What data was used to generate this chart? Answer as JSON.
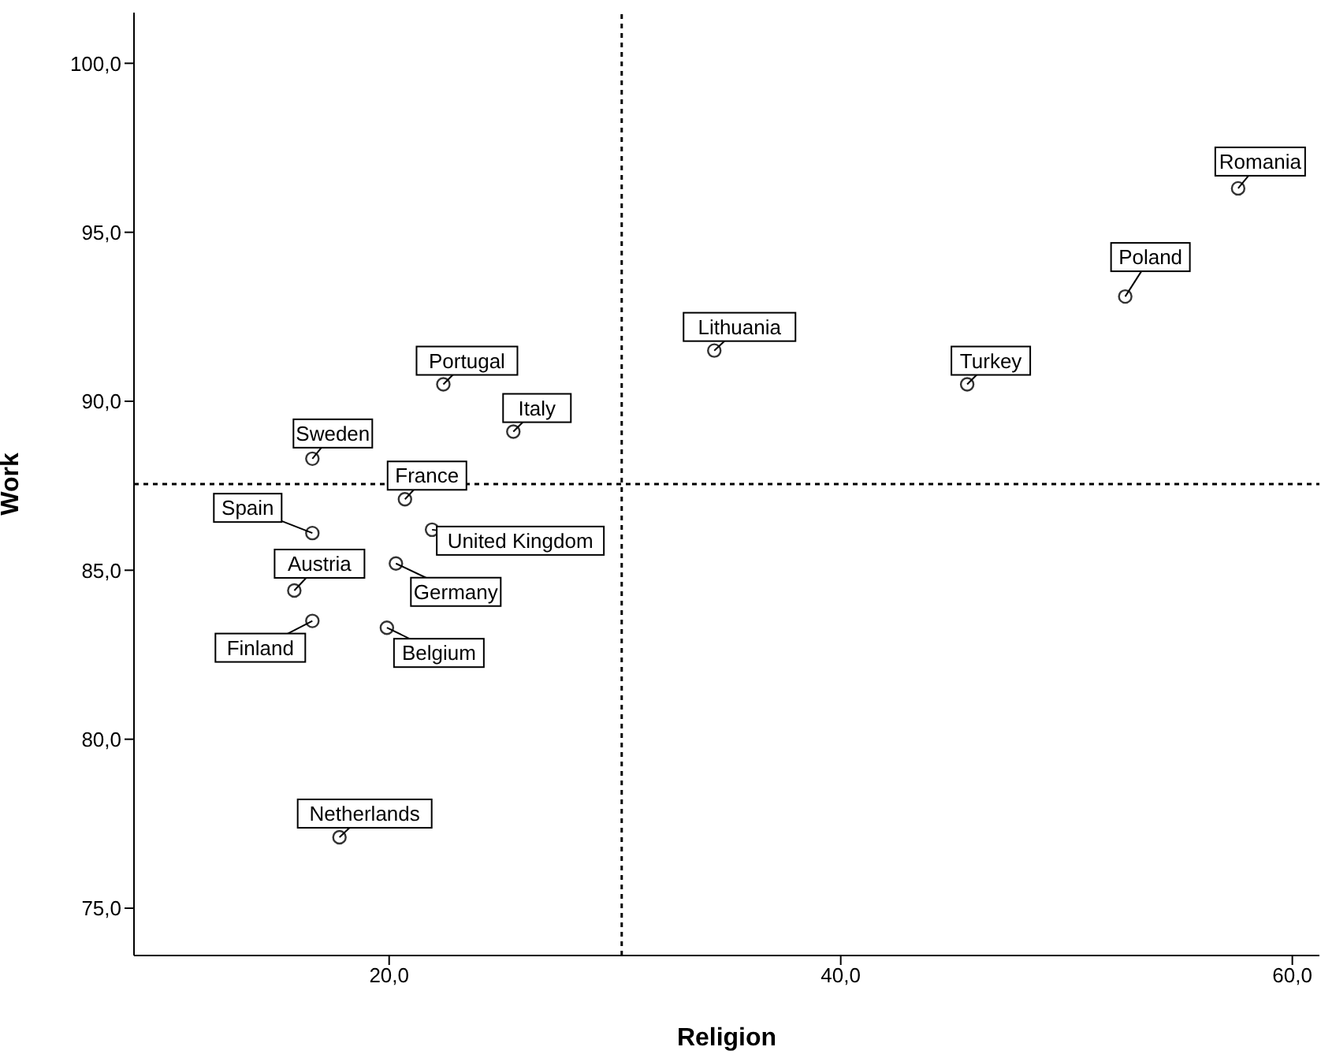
{
  "chart_data": {
    "type": "scatter",
    "xlabel": "Religion",
    "ylabel": "Work",
    "x": [
      57.6,
      52.6,
      45.6,
      34.4,
      22.4,
      25.5,
      16.6,
      20.7,
      16.6,
      21.9,
      20.3,
      15.8,
      16.6,
      19.9,
      17.8
    ],
    "values": [
      96.3,
      93.1,
      90.5,
      91.5,
      90.5,
      89.1,
      88.3,
      87.1,
      86.1,
      86.2,
      85.2,
      84.4,
      83.5,
      83.3,
      77.1
    ],
    "color": "#333333",
    "marker": "circle",
    "annotations": [
      {
        "text": "Romania",
        "x": 57.6,
        "y": 96.3
      },
      {
        "text": "Poland",
        "x": 52.6,
        "y": 93.1
      },
      {
        "text": "Turkey",
        "x": 45.6,
        "y": 90.5
      },
      {
        "text": "Lithuania",
        "x": 34.4,
        "y": 91.5
      },
      {
        "text": "Portugal",
        "x": 22.4,
        "y": 90.5
      },
      {
        "text": "Italy",
        "x": 25.5,
        "y": 89.1
      },
      {
        "text": "Sweden",
        "x": 16.6,
        "y": 88.3
      },
      {
        "text": "France",
        "x": 20.7,
        "y": 87.1
      },
      {
        "text": "Spain",
        "x": 16.6,
        "y": 86.1
      },
      {
        "text": "United Kingdom",
        "x": 21.9,
        "y": 86.2
      },
      {
        "text": "Germany",
        "x": 20.3,
        "y": 85.2
      },
      {
        "text": "Austria",
        "x": 15.8,
        "y": 84.4
      },
      {
        "text": "Finland",
        "x": 16.6,
        "y": 83.5
      },
      {
        "text": "Belgium",
        "x": 19.9,
        "y": 83.3
      },
      {
        "text": "Netherlands",
        "x": 17.8,
        "y": 77.1
      }
    ],
    "xlim": [
      8.7,
      61.2
    ],
    "xticks": [
      {
        "value": 20,
        "label": "20,0"
      },
      {
        "value": 40,
        "label": "40,0"
      },
      {
        "value": 60,
        "label": "60,0"
      }
    ],
    "ylim": [
      73.6,
      101.5
    ],
    "yticks": [
      {
        "value": 75,
        "label": "75,0"
      },
      {
        "value": 80,
        "label": "80,0"
      },
      {
        "value": 85,
        "label": "85,0"
      },
      {
        "value": 90,
        "label": "90,0"
      },
      {
        "value": 95,
        "label": "95,0"
      },
      {
        "value": 100,
        "label": "100,0"
      }
    ],
    "ref_lines": [
      {
        "axis": "x",
        "value": 30.3,
        "line_style": "dotted"
      },
      {
        "axis": "y",
        "value": 87.55,
        "line_style": "dotted"
      }
    ],
    "grid": false,
    "legend": false
  }
}
